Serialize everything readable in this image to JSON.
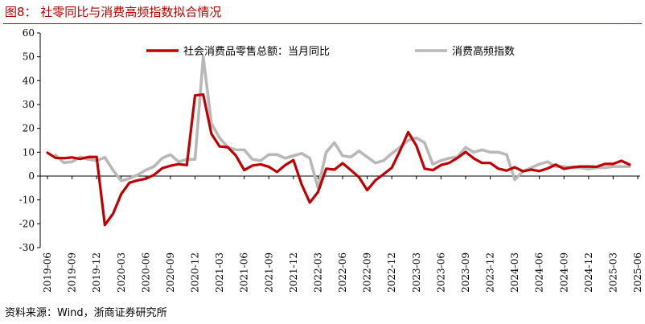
{
  "figure": {
    "title": "图8： 社零同比与消费高频指数拟合情况",
    "source": "资料来源：Wind，浙商证券研究所"
  },
  "colors": {
    "retail": "#c00000",
    "hf": "#b8b8b8",
    "accent": "#c00000"
  },
  "chart_data": {
    "type": "line",
    "y_ticks": [
      "60",
      "50",
      "40",
      "30",
      "20",
      "10",
      "0",
      "-10",
      "-20",
      "-30"
    ],
    "ylim": [
      -30,
      60
    ],
    "x_tick_labels": [
      "2019-06",
      "2019-09",
      "2019-12",
      "2020-03",
      "2020-06",
      "2020-09",
      "2020-12",
      "2021-03",
      "2021-06",
      "2021-09",
      "2021-12",
      "2022-03",
      "2022-06",
      "2022-09",
      "2022-12",
      "2023-03",
      "2023-06",
      "2023-09",
      "2023-12",
      "2024-03",
      "2024-06",
      "2024-09",
      "2024-12",
      "2025-03",
      "2025-06"
    ],
    "x_start": "2019-06",
    "legend": {
      "position": "top"
    },
    "series": [
      {
        "name": "社会消费品零售总额：当月同比",
        "values": [
          9.8,
          7.6,
          7.5,
          7.8,
          7.2,
          8.0,
          8.0,
          -20.5,
          -15.8,
          -7.5,
          -2.8,
          -1.8,
          -1.1,
          0.5,
          3.3,
          4.3,
          5.0,
          4.6,
          33.8,
          34.2,
          17.7,
          12.4,
          12.1,
          8.5,
          2.5,
          4.4,
          4.9,
          3.9,
          1.7,
          4.6,
          6.7,
          -3.5,
          -11.1,
          -6.7,
          3.1,
          2.7,
          5.4,
          2.5,
          -0.5,
          -5.9,
          -1.8,
          0.8,
          3.5,
          10.6,
          18.4,
          12.7,
          3.1,
          2.5,
          4.6,
          5.5,
          7.6,
          10.1,
          7.4,
          5.5,
          5.5,
          3.1,
          2.3,
          3.7,
          2.0,
          2.7,
          2.1,
          3.2,
          4.8,
          3.0,
          3.7,
          4.0,
          4.0,
          3.9,
          5.1,
          5.1,
          6.4,
          4.8
        ],
        "start": "2019-06"
      },
      {
        "name": "消费高频指数",
        "values": [
          8.8,
          5.6,
          6.0,
          8.0,
          7.0,
          6.5,
          7.8,
          2.5,
          -2.0,
          -1.0,
          0.5,
          2.5,
          4.0,
          7.5,
          9.0,
          6.0,
          7.0,
          7.0,
          50.0,
          22.0,
          16.0,
          12.0,
          11.0,
          11.0,
          7.0,
          6.5,
          9.0,
          9.0,
          7.5,
          8.5,
          9.5,
          7.5,
          -5.0,
          10.0,
          14.0,
          8.5,
          8.0,
          10.5,
          8.0,
          5.5,
          6.5,
          9.5,
          12.0,
          15.0,
          16.0,
          14.0,
          5.0,
          6.5,
          7.5,
          8.0,
          12.0,
          10.0,
          11.0,
          10.0,
          10.0,
          9.0,
          -1.5,
          2.0,
          3.5,
          5.0,
          6.0,
          4.0,
          4.0,
          3.5,
          3.5,
          3.0,
          3.5,
          3.5,
          4.0,
          4.0,
          4.0
        ],
        "start": "2019-07"
      }
    ]
  }
}
